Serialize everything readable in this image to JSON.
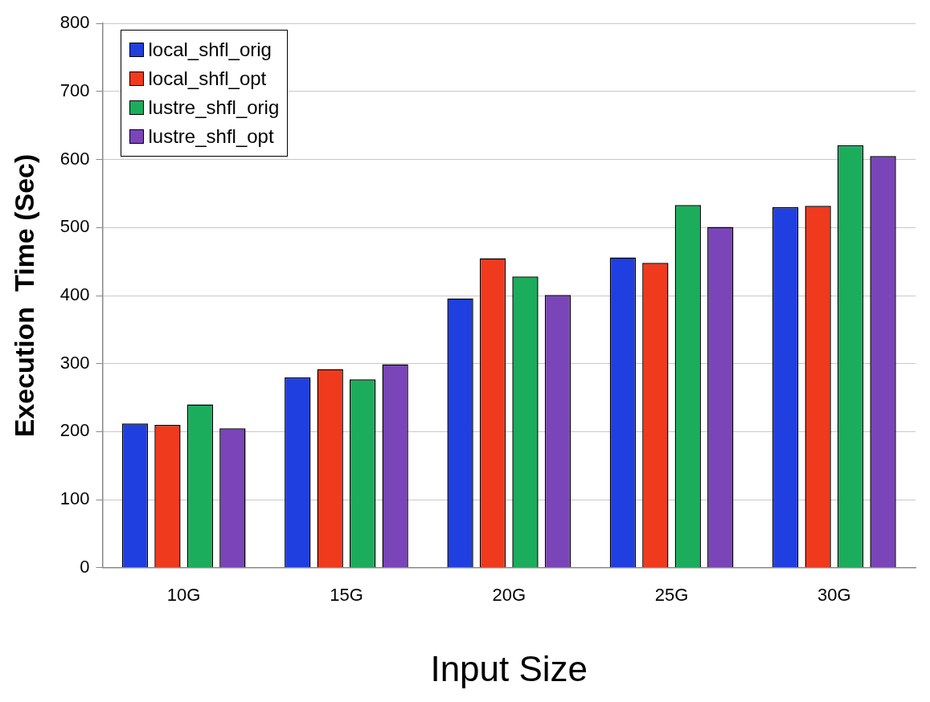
{
  "chart_data": {
    "type": "bar",
    "xlabel": "Input Size",
    "ylabel": "Execution  Time (Sec)",
    "categories": [
      "10G",
      "15G",
      "20G",
      "25G",
      "30G"
    ],
    "series": [
      {
        "name": "local_shfl_orig",
        "color": "#1f3fe0",
        "values": [
          212,
          280,
          396,
          456,
          530
        ]
      },
      {
        "name": "local_shfl_opt",
        "color": "#f03a1e",
        "values": [
          210,
          292,
          455,
          448,
          532
        ]
      },
      {
        "name": "lustre_shfl_orig",
        "color": "#1cad5c",
        "values": [
          240,
          277,
          428,
          533,
          621
        ]
      },
      {
        "name": "lustre_shfl_opt",
        "color": "#7a45b8",
        "values": [
          205,
          299,
          401,
          501,
          605
        ]
      }
    ],
    "ylim": [
      0,
      800
    ],
    "yticks": [
      0,
      100,
      200,
      300,
      400,
      500,
      600,
      700,
      800
    ],
    "grid": "y",
    "legend": "top left"
  }
}
